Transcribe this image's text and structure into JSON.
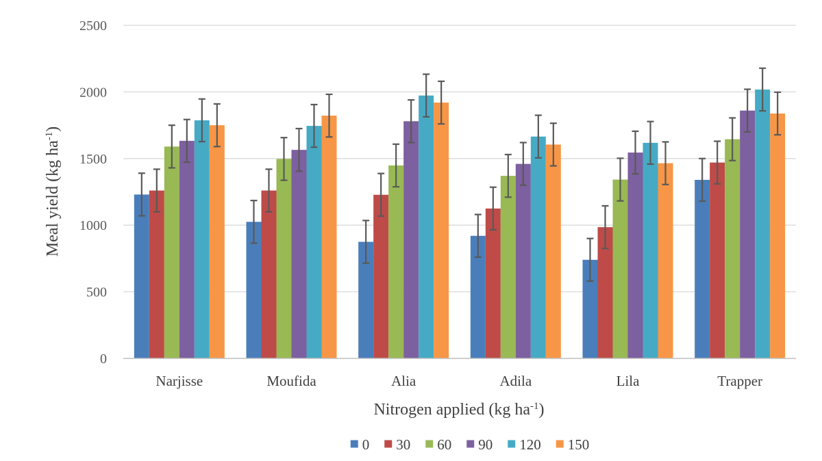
{
  "chart_data": {
    "type": "bar",
    "title": "",
    "xlabel": {
      "main": "Nitrogen applied (kg ha",
      "sup": "-1",
      "close": ")"
    },
    "ylabel": {
      "main": "Meal yield (kg ha",
      "sup": "-1",
      "close": ")"
    },
    "ylim": [
      0,
      2500
    ],
    "yticks": [
      0,
      500,
      1000,
      1500,
      2000,
      2500
    ],
    "grid": true,
    "legend_position": "bottom",
    "categories": [
      "Narjisse",
      "Moufida",
      "Alia",
      "Adila",
      "Lila",
      "Trapper"
    ],
    "error_bar": 160,
    "series": [
      {
        "name": "0",
        "color": "#4a7ebb",
        "values": [
          1230,
          1025,
          875,
          920,
          740,
          1340
        ]
      },
      {
        "name": "30",
        "color": "#be4b48",
        "values": [
          1260,
          1260,
          1228,
          1125,
          985,
          1470
        ]
      },
      {
        "name": "60",
        "color": "#98b954",
        "values": [
          1590,
          1497,
          1448,
          1370,
          1342,
          1645
        ]
      },
      {
        "name": "90",
        "color": "#7d60a0",
        "values": [
          1633,
          1565,
          1780,
          1460,
          1545,
          1860
        ]
      },
      {
        "name": "120",
        "color": "#46aac5",
        "values": [
          1787,
          1745,
          1973,
          1665,
          1618,
          2018
        ]
      },
      {
        "name": "150",
        "color": "#f79646",
        "values": [
          1750,
          1822,
          1920,
          1605,
          1465,
          1838
        ]
      }
    ]
  }
}
